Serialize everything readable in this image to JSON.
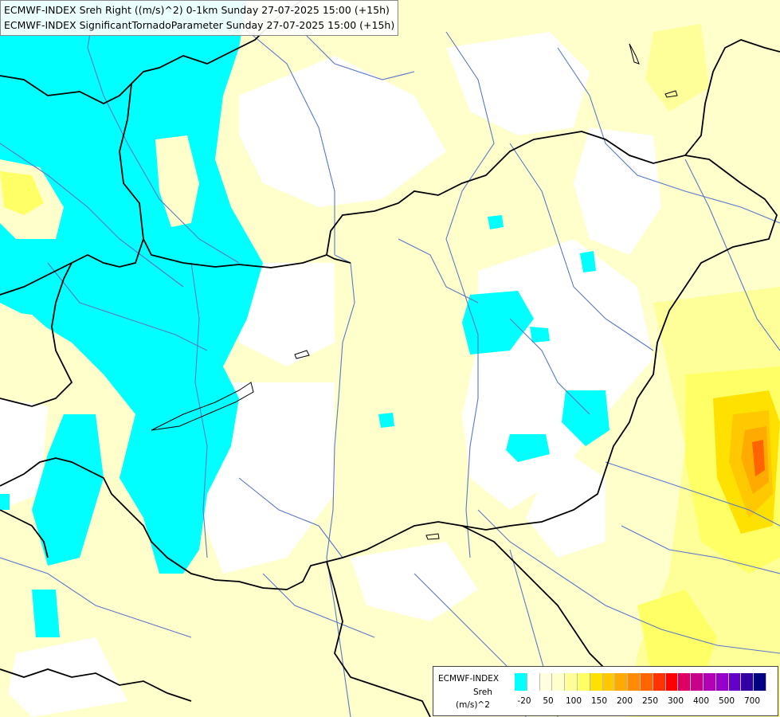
{
  "header": {
    "line1": "ECMWF-INDEX Sreh Right ((m/s)^2) 0-1km Sunday 27-07-2025 15:00 (+15h)",
    "line2": "ECMWF-INDEX SignificantTornadoParameter Sunday 27-07-2025 15:00 (+15h)"
  },
  "legend": {
    "title": "ECMWF-INDEX",
    "param": "Sreh",
    "unit": "(m/s)^2",
    "tick_labels": [
      "-20",
      "50",
      "100",
      "150",
      "200",
      "250",
      "300",
      "400",
      "500",
      "700"
    ],
    "colors": [
      "#00ffff",
      "#ffffff",
      "#ffffe0",
      "#ffffcc",
      "#ffff99",
      "#ffff66",
      "#ffe100",
      "#ffc800",
      "#ffaa00",
      "#ff8c00",
      "#ff6400",
      "#ff3200",
      "#ff0000",
      "#dc0064",
      "#c8008c",
      "#b400b4",
      "#9600c8",
      "#6400c8",
      "#3200a0",
      "#000080"
    ]
  },
  "colors": {
    "cyan": "#00ffff",
    "pale_yellow": "#ffffcc",
    "yellow": "#ffff66",
    "orange": "#ff8c00",
    "border": "#000000",
    "river": "#5a78c8"
  }
}
